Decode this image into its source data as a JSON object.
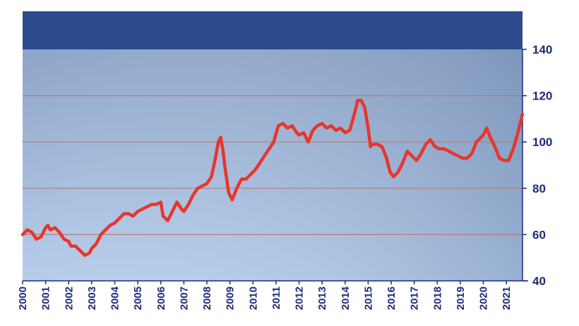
{
  "colors": {
    "header": "#2c4a8c",
    "plot_top": "#93aacb",
    "plot_bottom": "#b4cbe9",
    "plot_right": "#8ea5c4",
    "gridline": "#b07c78",
    "line": "#e8352b",
    "tick_text": "#1d2c78",
    "axis": "#1d2c78"
  },
  "chart_data": {
    "type": "line",
    "title": "",
    "xlabel": "",
    "ylabel": "",
    "ylim": [
      40,
      140
    ],
    "xlim": [
      2000,
      2021.7
    ],
    "y_ticks": [
      "40",
      "60",
      "80",
      "100",
      "120",
      "140"
    ],
    "x_ticks": [
      "2000",
      "2001",
      "2002",
      "2003",
      "2004",
      "2005",
      "2006",
      "2007",
      "2008",
      "2009",
      "2010",
      "2011",
      "2012",
      "2013",
      "2014",
      "2015",
      "2016",
      "2017",
      "2018",
      "2019",
      "2020",
      "2021"
    ],
    "y_axis_position": "right",
    "grid": true,
    "legend": "none",
    "series": [
      {
        "x": [
          2000.0,
          2000.2,
          2000.4,
          2000.6,
          2000.8,
          2001.0,
          2001.1,
          2001.2,
          2001.4,
          2001.6,
          2001.8,
          2002.0,
          2002.1,
          2002.3,
          2002.5,
          2002.7,
          2002.9,
          2003.0,
          2003.2,
          2003.4,
          2003.6,
          2003.8,
          2004.0,
          2004.2,
          2004.4,
          2004.6,
          2004.8,
          2005.0,
          2005.2,
          2005.4,
          2005.6,
          2005.8,
          2006.0,
          2006.1,
          2006.3,
          2006.5,
          2006.7,
          2006.9,
          2007.0,
          2007.2,
          2007.4,
          2007.6,
          2007.8,
          2008.0,
          2008.2,
          2008.35,
          2008.5,
          2008.6,
          2008.7,
          2008.8,
          2008.95,
          2009.1,
          2009.3,
          2009.5,
          2009.7,
          2009.9,
          2010.1,
          2010.3,
          2010.5,
          2010.7,
          2010.9,
          2011.1,
          2011.3,
          2011.5,
          2011.7,
          2011.9,
          2012.0,
          2012.2,
          2012.4,
          2012.6,
          2012.8,
          2013.0,
          2013.2,
          2013.4,
          2013.6,
          2013.8,
          2014.0,
          2014.2,
          2014.4,
          2014.55,
          2014.7,
          2014.85,
          2015.0,
          2015.1,
          2015.2,
          2015.4,
          2015.6,
          2015.8,
          2015.95,
          2016.1,
          2016.3,
          2016.5,
          2016.7,
          2016.9,
          2017.1,
          2017.3,
          2017.5,
          2017.7,
          2017.9,
          2018.1,
          2018.3,
          2018.5,
          2018.7,
          2018.9,
          2019.1,
          2019.3,
          2019.5,
          2019.7,
          2019.9,
          2020.0,
          2020.15,
          2020.3,
          2020.5,
          2020.7,
          2020.9,
          2021.1,
          2021.3,
          2021.5,
          2021.7
        ],
        "values": [
          60,
          62,
          61,
          58,
          59,
          63,
          64,
          62,
          63,
          61,
          58,
          57,
          55,
          55,
          53,
          51,
          52,
          54,
          56,
          60,
          62,
          64,
          65,
          67,
          69,
          69,
          68,
          70,
          71,
          72,
          73,
          73,
          74,
          68,
          66,
          70,
          74,
          71,
          70,
          73,
          77,
          80,
          81,
          82,
          85,
          92,
          100,
          102,
          96,
          88,
          78,
          75,
          80,
          84,
          84,
          86,
          88,
          91,
          94,
          97,
          100,
          107,
          108,
          106,
          107,
          104,
          103,
          104,
          100,
          105,
          107,
          108,
          106,
          107,
          105,
          106,
          104,
          105,
          112,
          118,
          118,
          115,
          106,
          98,
          99,
          99,
          98,
          93,
          87,
          85,
          87,
          91,
          96,
          94,
          92,
          95,
          99,
          101,
          98,
          97,
          97,
          96,
          95,
          94,
          93,
          93,
          95,
          100,
          102,
          103,
          106,
          102,
          98,
          93,
          92,
          92,
          97,
          104,
          112
        ]
      }
    ]
  }
}
